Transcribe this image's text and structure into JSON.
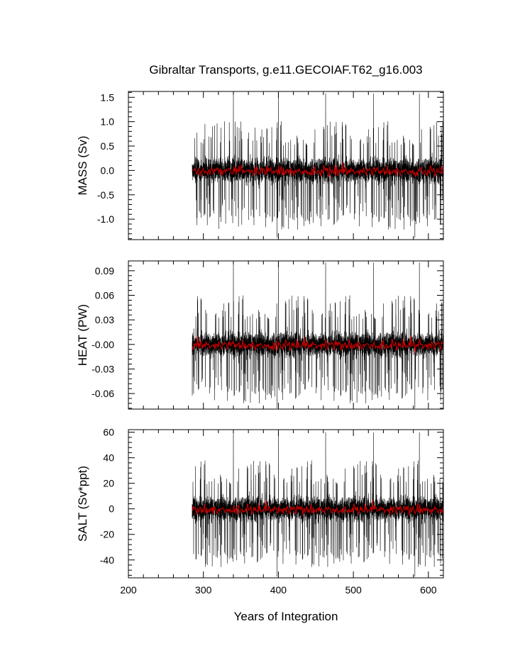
{
  "chart_data": [
    {
      "type": "line",
      "title": "Gibraltar Transports, g.e11.GECOIAF.T62_g16.003",
      "xlabel": "",
      "ylabel": "MASS (Sv)",
      "xlim": [
        200,
        620
      ],
      "ylim": [
        -1.42,
        1.62
      ],
      "yticks": [
        1.5,
        1.0,
        0.5,
        0.0,
        -0.5,
        -1.0
      ],
      "ytick_labels": [
        "1.5",
        "1.0",
        "0.5",
        "0.0",
        "-0.5",
        "-1.0"
      ],
      "x_start": 285,
      "x_end": 620,
      "amplitude": 0.32,
      "spike_high": 1.58,
      "spike_low": -1.38,
      "series": [
        {
          "name": "",
          "color": "#000000",
          "values_range": [
            -1.38,
            1.58
          ]
        },
        {
          "name": "",
          "color": "#cc0000",
          "values_range": [
            -0.12,
            0.12
          ]
        }
      ],
      "grid": false
    },
    {
      "type": "line",
      "title": "",
      "xlabel": "",
      "ylabel": "HEAT (PW)",
      "xlim": [
        200,
        620
      ],
      "ylim": [
        -0.079,
        0.102
      ],
      "yticks": [
        0.09,
        0.06,
        0.03,
        0.0,
        -0.03,
        -0.06
      ],
      "ytick_labels": [
        "0.09",
        "0.06",
        "0.03",
        "-0.00",
        "-0.03",
        "-0.06"
      ],
      "x_start": 285,
      "x_end": 620,
      "amplitude": 0.019,
      "spike_high": 0.1,
      "spike_low": -0.078,
      "series": [
        {
          "name": "",
          "color": "#000000",
          "values_range": [
            -0.078,
            0.1
          ]
        },
        {
          "name": "",
          "color": "#cc0000",
          "values_range": [
            -0.008,
            0.008
          ]
        }
      ],
      "grid": false
    },
    {
      "type": "line",
      "title": "",
      "xlabel": "Years of Integration",
      "ylabel": "SALT (Sv*ppt)",
      "xlim": [
        200,
        620
      ],
      "ylim": [
        -54,
        62
      ],
      "yticks": [
        60,
        40,
        20,
        0,
        -20,
        -40
      ],
      "ytick_labels": [
        "60",
        "40",
        "20",
        "0",
        "-20",
        "-40"
      ],
      "xticks": [
        200,
        300,
        400,
        500,
        600
      ],
      "xtick_labels": [
        "200",
        "300",
        "400",
        "500",
        "600"
      ],
      "x_start": 285,
      "x_end": 620,
      "amplitude": 12,
      "spike_high": 60,
      "spike_low": -53,
      "series": [
        {
          "name": "",
          "color": "#000000",
          "values_range": [
            -53,
            60
          ]
        },
        {
          "name": "",
          "color": "#cc0000",
          "values_range": [
            -4,
            4
          ]
        }
      ],
      "grid": false
    }
  ]
}
